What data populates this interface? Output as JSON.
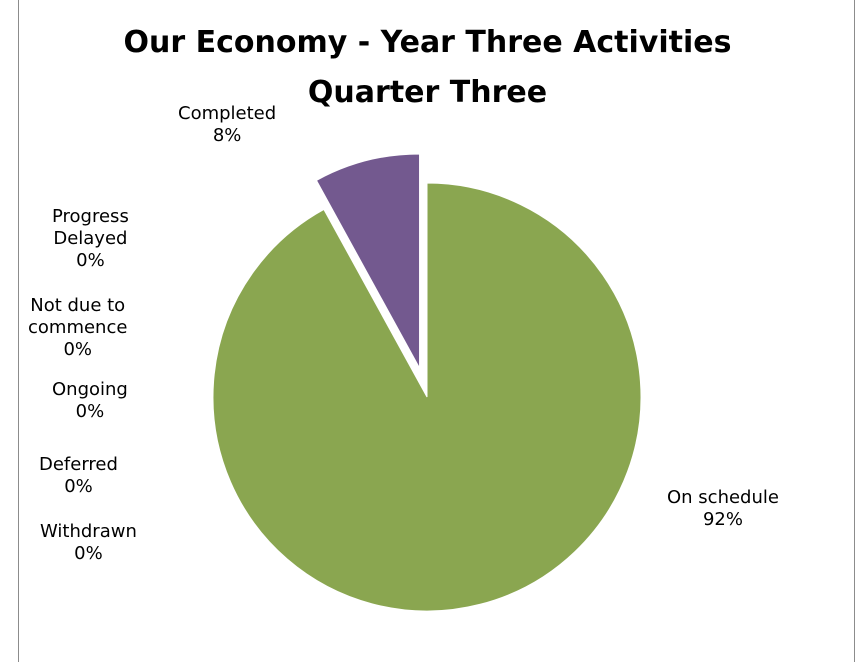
{
  "chart_data": {
    "type": "pie",
    "title": "Our Economy - Year Three Activities Quarter Three",
    "title_lines": [
      "Our Economy - Year Three Activities",
      "Quarter Three"
    ],
    "slices": [
      {
        "name": "On schedule",
        "value": 92,
        "label": "92%",
        "color": "#8aa650",
        "exploded": false
      },
      {
        "name": "Completed",
        "value": 8,
        "label": "8%",
        "color": "#73598f",
        "exploded": true
      },
      {
        "name": "Progress Delayed",
        "value": 0,
        "label": "0%",
        "color": "#c0504d",
        "exploded": false
      },
      {
        "name": "Not due to commence",
        "value": 0,
        "label": "0%",
        "color": "#4f81bd",
        "exploded": false
      },
      {
        "name": "Ongoing",
        "value": 0,
        "label": "0%",
        "color": "#4bacc6",
        "exploded": false
      },
      {
        "name": "Deferred",
        "value": 0,
        "label": "0%",
        "color": "#f79646",
        "exploded": false
      },
      {
        "name": "Withdrawn",
        "value": 0,
        "label": "0%",
        "color": "#2c4d75",
        "exploded": false
      }
    ],
    "legend": "none"
  }
}
